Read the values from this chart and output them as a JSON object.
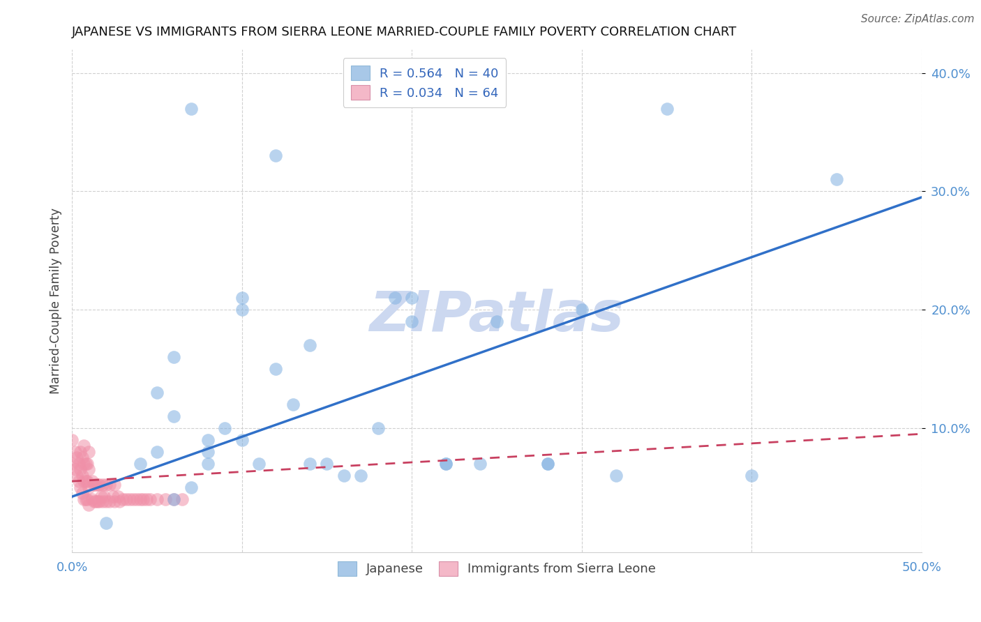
{
  "title": "JAPANESE VS IMMIGRANTS FROM SIERRA LEONE MARRIED-COUPLE FAMILY POVERTY CORRELATION CHART",
  "source": "Source: ZipAtlas.com",
  "ylabel": "Married-Couple Family Poverty",
  "xlim": [
    0.0,
    0.5
  ],
  "ylim": [
    -0.005,
    0.42
  ],
  "yticks": [
    0.1,
    0.2,
    0.3,
    0.4
  ],
  "ytick_labels": [
    "10.0%",
    "20.0%",
    "30.0%",
    "40.0%"
  ],
  "legend_label1": "R = 0.564   N = 40",
  "legend_label2": "R = 0.034   N = 64",
  "legend_color1": "#a8c8e8",
  "legend_color2": "#f4b8c8",
  "scatter_color_japanese": "#80b0e0",
  "scatter_color_sierra": "#f090a8",
  "trendline_color_japanese": "#3070c8",
  "trendline_color_sierra": "#c84060",
  "watermark_color": "#ccd8f0",
  "background_color": "#ffffff",
  "japanese_x": [
    0.02,
    0.04,
    0.05,
    0.05,
    0.06,
    0.06,
    0.07,
    0.07,
    0.08,
    0.08,
    0.09,
    0.1,
    0.1,
    0.11,
    0.12,
    0.12,
    0.13,
    0.14,
    0.15,
    0.16,
    0.17,
    0.18,
    0.19,
    0.2,
    0.22,
    0.24,
    0.25,
    0.28,
    0.3,
    0.32,
    0.35,
    0.4,
    0.45,
    0.06,
    0.08,
    0.1,
    0.14,
    0.2,
    0.28,
    0.22
  ],
  "japanese_y": [
    0.02,
    0.07,
    0.08,
    0.13,
    0.04,
    0.11,
    0.05,
    0.37,
    0.07,
    0.09,
    0.1,
    0.09,
    0.2,
    0.07,
    0.15,
    0.33,
    0.12,
    0.07,
    0.07,
    0.06,
    0.06,
    0.1,
    0.21,
    0.19,
    0.07,
    0.07,
    0.19,
    0.07,
    0.2,
    0.06,
    0.37,
    0.06,
    0.31,
    0.16,
    0.08,
    0.21,
    0.17,
    0.21,
    0.07,
    0.07
  ],
  "sierra_x": [
    0.0,
    0.0,
    0.002,
    0.002,
    0.003,
    0.003,
    0.004,
    0.004,
    0.005,
    0.005,
    0.005,
    0.006,
    0.006,
    0.006,
    0.007,
    0.007,
    0.007,
    0.007,
    0.008,
    0.008,
    0.008,
    0.009,
    0.009,
    0.009,
    0.01,
    0.01,
    0.01,
    0.01,
    0.012,
    0.012,
    0.013,
    0.013,
    0.014,
    0.014,
    0.015,
    0.015,
    0.016,
    0.016,
    0.017,
    0.018,
    0.018,
    0.019,
    0.02,
    0.02,
    0.022,
    0.022,
    0.024,
    0.025,
    0.025,
    0.027,
    0.028,
    0.03,
    0.032,
    0.034,
    0.036,
    0.038,
    0.04,
    0.042,
    0.044,
    0.046,
    0.05,
    0.055,
    0.06,
    0.065
  ],
  "sierra_y": [
    0.07,
    0.09,
    0.065,
    0.08,
    0.06,
    0.075,
    0.055,
    0.07,
    0.05,
    0.065,
    0.08,
    0.045,
    0.06,
    0.075,
    0.04,
    0.055,
    0.07,
    0.085,
    0.04,
    0.055,
    0.07,
    0.04,
    0.055,
    0.07,
    0.035,
    0.05,
    0.065,
    0.08,
    0.04,
    0.055,
    0.038,
    0.052,
    0.038,
    0.052,
    0.038,
    0.052,
    0.038,
    0.052,
    0.042,
    0.038,
    0.052,
    0.042,
    0.038,
    0.052,
    0.038,
    0.052,
    0.042,
    0.038,
    0.052,
    0.042,
    0.038,
    0.04,
    0.04,
    0.04,
    0.04,
    0.04,
    0.04,
    0.04,
    0.04,
    0.04,
    0.04,
    0.04,
    0.04,
    0.04
  ],
  "trend_j_x0": 0.0,
  "trend_j_y0": 0.042,
  "trend_j_x1": 0.5,
  "trend_j_y1": 0.295,
  "trend_s_x0": 0.0,
  "trend_s_y0": 0.055,
  "trend_s_x1": 0.5,
  "trend_s_y1": 0.095
}
